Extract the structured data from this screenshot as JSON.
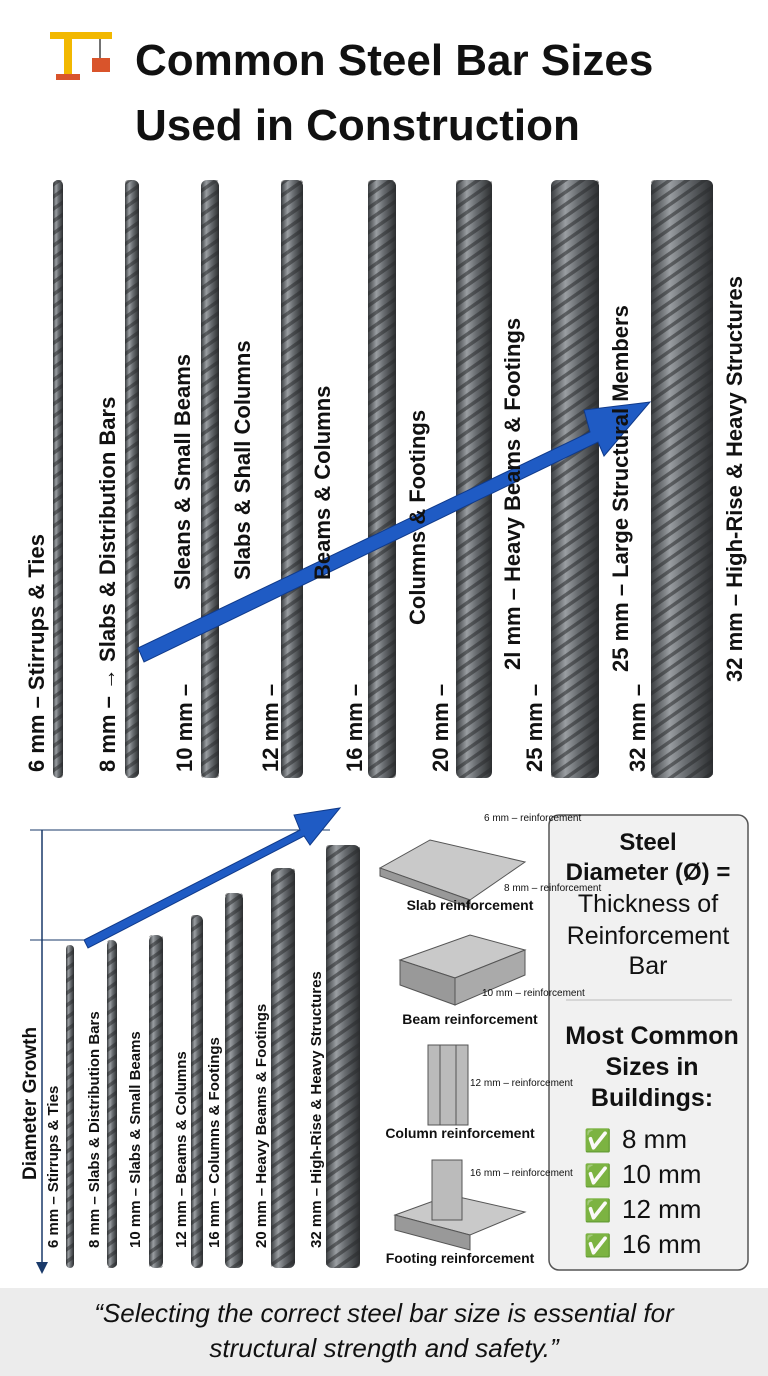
{
  "header": {
    "title_lines": [
      "Common Steel Bar Sizes",
      "Used in Construction"
    ]
  },
  "top_labels": [
    "6 mm – Stirrups & Ties",
    "8 mm – → Slabs & Distribution Bars",
    "10 mm –",
    "Sleans & Small Beams",
    "12 mm –",
    "Slabs & Shall Columns",
    "16 mm –",
    "Beams & Columns",
    "20 mm –",
    "Columns & Footings",
    "25 mm –",
    "2l mm – Heavy Beams & Footings",
    "32 mm –",
    "25 mm – Large Structural Members",
    "32 mm – High-Rise & Heavy Structures"
  ],
  "growth": {
    "title": "Diameter Growth",
    "labels": [
      "6 mm – Stirrups & Ties",
      "8 mm – Slabs & Distribution Bars",
      "10 mm – Slabs & Small Beams",
      "12 mm – Beams & Columns",
      "16 mm – Columns & Footings",
      "20 mm – Heavy Beams & Footings",
      "32 mm – High-Rise & Heavy Structures"
    ]
  },
  "applications": [
    {
      "name": "Slab reinforcement",
      "callouts": [
        "6 mm – reinforcement",
        "8 mm – reinforcement"
      ]
    },
    {
      "name": "Beam reinforcement",
      "callouts": [
        "10 mm – reinforcement"
      ]
    },
    {
      "name": "Column reinforcement",
      "callouts": [
        "12 mm – reinforcement"
      ]
    },
    {
      "name": "Footing reinforcement",
      "callouts": [
        "16 mm – reinforcement"
      ]
    }
  ],
  "info_box": {
    "definition_title": [
      "Steel",
      "Diameter (Ø) ="
    ],
    "definition_text": [
      "Thickness of",
      "Reinforcement",
      "Bar"
    ],
    "common_title": [
      "Most Common",
      "Sizes in",
      "Buildings:"
    ],
    "common_sizes": [
      "8 mm",
      "10 mm",
      "12 mm",
      "16 mm"
    ],
    "check": "✅"
  },
  "footer": {
    "quote_lines": [
      "“Selecting the correct steel bar size is essential for",
      "structural strength and safety.”"
    ]
  }
}
